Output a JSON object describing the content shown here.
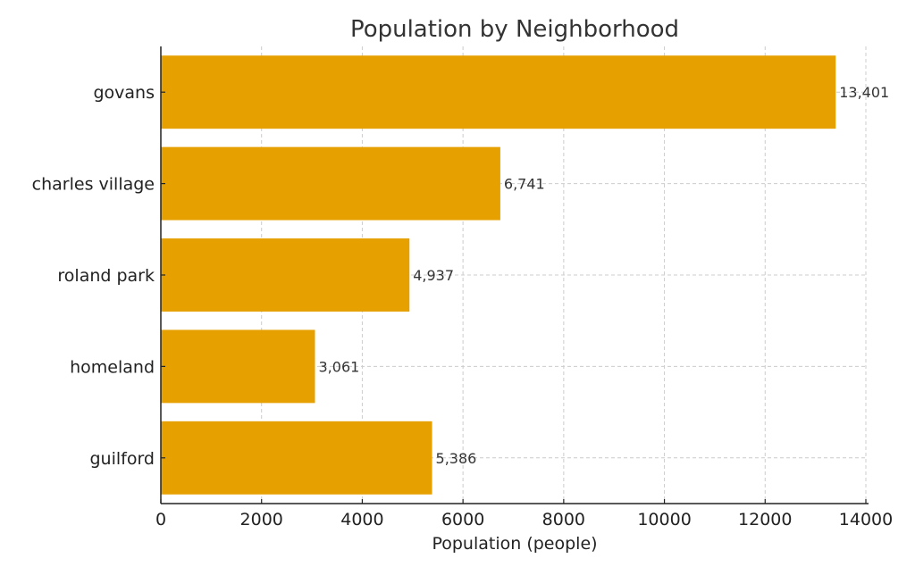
{
  "chart_data": {
    "type": "bar",
    "orientation": "horizontal",
    "title": "Population by Neighborhood",
    "xlabel": "Population (people)",
    "ylabel": "",
    "categories": [
      "govans",
      "charles village",
      "roland park",
      "homeland",
      "guilford"
    ],
    "values": [
      13401,
      6741,
      4937,
      3061,
      5386
    ],
    "data_labels": [
      "13,401",
      "6,741",
      "4,937",
      "3,061",
      "5,386"
    ],
    "xlim": [
      0,
      14000
    ],
    "xticks": [
      "0",
      "2000",
      "4000",
      "6000",
      "8000",
      "10000",
      "12000",
      "14000"
    ],
    "grid": true,
    "bar_color": "#E6A000"
  }
}
